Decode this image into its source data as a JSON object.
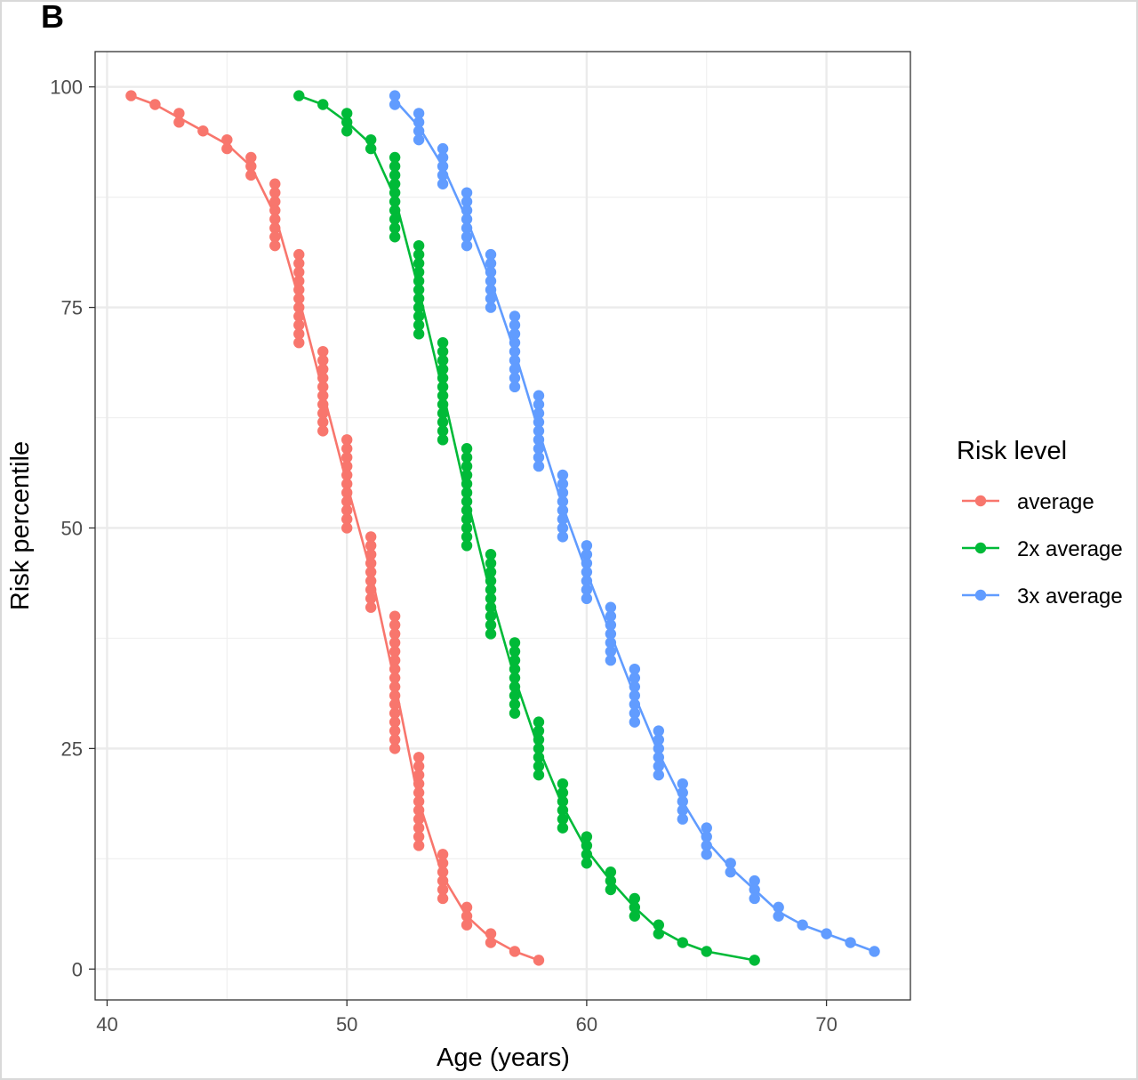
{
  "panel_label": "B",
  "chart_data": {
    "type": "scatter",
    "xlabel": "Age (years)",
    "ylabel": "Risk percentile",
    "xlim": [
      39.5,
      73.5
    ],
    "ylim": [
      -3.5,
      104
    ],
    "x_ticks": [
      40,
      50,
      60,
      70
    ],
    "y_ticks": [
      0,
      25,
      50,
      75,
      100
    ],
    "grid": true,
    "legend_title": "Risk level",
    "legend_position": "right",
    "series": [
      {
        "name": "average",
        "color": "#F8766D",
        "points": [
          [
            41,
            99
          ],
          [
            42,
            98
          ],
          [
            43,
            97
          ],
          [
            43,
            96
          ],
          [
            44,
            95
          ],
          [
            45,
            94
          ],
          [
            45,
            93
          ],
          [
            46,
            92
          ],
          [
            46,
            91
          ],
          [
            46,
            90
          ],
          [
            47,
            89
          ],
          [
            47,
            88
          ],
          [
            47,
            87
          ],
          [
            47,
            86
          ],
          [
            47,
            85
          ],
          [
            47,
            84
          ],
          [
            47,
            83
          ],
          [
            47,
            82
          ],
          [
            48,
            81
          ],
          [
            48,
            80
          ],
          [
            48,
            79
          ],
          [
            48,
            78
          ],
          [
            48,
            77
          ],
          [
            48,
            76
          ],
          [
            48,
            75
          ],
          [
            48,
            74
          ],
          [
            48,
            73
          ],
          [
            48,
            72
          ],
          [
            48,
            71
          ],
          [
            49,
            70
          ],
          [
            49,
            69
          ],
          [
            49,
            68
          ],
          [
            49,
            67
          ],
          [
            49,
            66
          ],
          [
            49,
            65
          ],
          [
            49,
            64
          ],
          [
            49,
            63
          ],
          [
            49,
            62
          ],
          [
            49,
            61
          ],
          [
            50,
            60
          ],
          [
            50,
            59
          ],
          [
            50,
            58
          ],
          [
            50,
            57
          ],
          [
            50,
            56
          ],
          [
            50,
            55
          ],
          [
            50,
            54
          ],
          [
            50,
            53
          ],
          [
            50,
            52
          ],
          [
            50,
            51
          ],
          [
            50,
            50
          ],
          [
            51,
            49
          ],
          [
            51,
            48
          ],
          [
            51,
            47
          ],
          [
            51,
            46
          ],
          [
            51,
            45
          ],
          [
            51,
            44
          ],
          [
            51,
            43
          ],
          [
            51,
            42
          ],
          [
            51,
            41
          ],
          [
            52,
            40
          ],
          [
            52,
            39
          ],
          [
            52,
            38
          ],
          [
            52,
            37
          ],
          [
            52,
            36
          ],
          [
            52,
            35
          ],
          [
            52,
            34
          ],
          [
            52,
            33
          ],
          [
            52,
            32
          ],
          [
            52,
            31
          ],
          [
            52,
            30
          ],
          [
            52,
            29
          ],
          [
            52,
            28
          ],
          [
            52,
            27
          ],
          [
            52,
            26
          ],
          [
            52,
            25
          ],
          [
            53,
            24
          ],
          [
            53,
            23
          ],
          [
            53,
            22
          ],
          [
            53,
            21
          ],
          [
            53,
            20
          ],
          [
            53,
            19
          ],
          [
            53,
            18
          ],
          [
            53,
            17
          ],
          [
            53,
            16
          ],
          [
            53,
            15
          ],
          [
            53,
            14
          ],
          [
            54,
            13
          ],
          [
            54,
            12
          ],
          [
            54,
            11
          ],
          [
            54,
            10
          ],
          [
            54,
            9
          ],
          [
            54,
            8
          ],
          [
            55,
            7
          ],
          [
            55,
            6
          ],
          [
            55,
            5
          ],
          [
            56,
            4
          ],
          [
            56,
            3
          ],
          [
            57,
            2
          ],
          [
            58,
            1
          ]
        ]
      },
      {
        "name": "2x average",
        "color": "#00BA38",
        "points": [
          [
            48,
            99
          ],
          [
            49,
            98
          ],
          [
            50,
            97
          ],
          [
            50,
            96
          ],
          [
            50,
            95
          ],
          [
            51,
            94
          ],
          [
            51,
            93
          ],
          [
            52,
            92
          ],
          [
            52,
            91
          ],
          [
            52,
            90
          ],
          [
            52,
            89
          ],
          [
            52,
            88
          ],
          [
            52,
            87
          ],
          [
            52,
            86
          ],
          [
            52,
            85
          ],
          [
            52,
            84
          ],
          [
            52,
            83
          ],
          [
            53,
            82
          ],
          [
            53,
            81
          ],
          [
            53,
            80
          ],
          [
            53,
            79
          ],
          [
            53,
            78
          ],
          [
            53,
            77
          ],
          [
            53,
            76
          ],
          [
            53,
            75
          ],
          [
            53,
            74
          ],
          [
            53,
            73
          ],
          [
            53,
            72
          ],
          [
            54,
            71
          ],
          [
            54,
            70
          ],
          [
            54,
            69
          ],
          [
            54,
            68
          ],
          [
            54,
            67
          ],
          [
            54,
            66
          ],
          [
            54,
            65
          ],
          [
            54,
            64
          ],
          [
            54,
            63
          ],
          [
            54,
            62
          ],
          [
            54,
            61
          ],
          [
            54,
            60
          ],
          [
            55,
            59
          ],
          [
            55,
            58
          ],
          [
            55,
            57
          ],
          [
            55,
            56
          ],
          [
            55,
            55
          ],
          [
            55,
            54
          ],
          [
            55,
            53
          ],
          [
            55,
            52
          ],
          [
            55,
            51
          ],
          [
            55,
            50
          ],
          [
            55,
            49
          ],
          [
            55,
            48
          ],
          [
            56,
            47
          ],
          [
            56,
            46
          ],
          [
            56,
            45
          ],
          [
            56,
            44
          ],
          [
            56,
            43
          ],
          [
            56,
            42
          ],
          [
            56,
            41
          ],
          [
            56,
            40
          ],
          [
            56,
            39
          ],
          [
            56,
            38
          ],
          [
            57,
            37
          ],
          [
            57,
            36
          ],
          [
            57,
            35
          ],
          [
            57,
            34
          ],
          [
            57,
            33
          ],
          [
            57,
            32
          ],
          [
            57,
            31
          ],
          [
            57,
            30
          ],
          [
            57,
            29
          ],
          [
            58,
            28
          ],
          [
            58,
            27
          ],
          [
            58,
            26
          ],
          [
            58,
            25
          ],
          [
            58,
            24
          ],
          [
            58,
            23
          ],
          [
            58,
            22
          ],
          [
            59,
            21
          ],
          [
            59,
            20
          ],
          [
            59,
            19
          ],
          [
            59,
            18
          ],
          [
            59,
            17
          ],
          [
            59,
            16
          ],
          [
            60,
            15
          ],
          [
            60,
            14
          ],
          [
            60,
            13
          ],
          [
            60,
            12
          ],
          [
            61,
            11
          ],
          [
            61,
            10
          ],
          [
            61,
            9
          ],
          [
            62,
            8
          ],
          [
            62,
            7
          ],
          [
            62,
            6
          ],
          [
            63,
            5
          ],
          [
            63,
            4
          ],
          [
            64,
            3
          ],
          [
            65,
            2
          ],
          [
            67,
            1
          ]
        ]
      },
      {
        "name": "3x average",
        "color": "#619CFF",
        "points": [
          [
            52,
            99
          ],
          [
            52,
            98
          ],
          [
            53,
            97
          ],
          [
            53,
            96
          ],
          [
            53,
            95
          ],
          [
            53,
            94
          ],
          [
            54,
            93
          ],
          [
            54,
            92
          ],
          [
            54,
            91
          ],
          [
            54,
            90
          ],
          [
            54,
            89
          ],
          [
            55,
            88
          ],
          [
            55,
            87
          ],
          [
            55,
            86
          ],
          [
            55,
            85
          ],
          [
            55,
            84
          ],
          [
            55,
            83
          ],
          [
            55,
            82
          ],
          [
            56,
            81
          ],
          [
            56,
            80
          ],
          [
            56,
            79
          ],
          [
            56,
            78
          ],
          [
            56,
            77
          ],
          [
            56,
            76
          ],
          [
            56,
            75
          ],
          [
            57,
            74
          ],
          [
            57,
            73
          ],
          [
            57,
            72
          ],
          [
            57,
            71
          ],
          [
            57,
            70
          ],
          [
            57,
            69
          ],
          [
            57,
            68
          ],
          [
            57,
            67
          ],
          [
            57,
            66
          ],
          [
            58,
            65
          ],
          [
            58,
            64
          ],
          [
            58,
            63
          ],
          [
            58,
            62
          ],
          [
            58,
            61
          ],
          [
            58,
            60
          ],
          [
            58,
            59
          ],
          [
            58,
            58
          ],
          [
            58,
            57
          ],
          [
            59,
            56
          ],
          [
            59,
            55
          ],
          [
            59,
            54
          ],
          [
            59,
            53
          ],
          [
            59,
            52
          ],
          [
            59,
            51
          ],
          [
            59,
            50
          ],
          [
            59,
            49
          ],
          [
            60,
            48
          ],
          [
            60,
            47
          ],
          [
            60,
            46
          ],
          [
            60,
            45
          ],
          [
            60,
            44
          ],
          [
            60,
            43
          ],
          [
            60,
            42
          ],
          [
            61,
            41
          ],
          [
            61,
            40
          ],
          [
            61,
            39
          ],
          [
            61,
            38
          ],
          [
            61,
            37
          ],
          [
            61,
            36
          ],
          [
            61,
            35
          ],
          [
            62,
            34
          ],
          [
            62,
            33
          ],
          [
            62,
            32
          ],
          [
            62,
            31
          ],
          [
            62,
            30
          ],
          [
            62,
            29
          ],
          [
            62,
            28
          ],
          [
            63,
            27
          ],
          [
            63,
            26
          ],
          [
            63,
            25
          ],
          [
            63,
            24
          ],
          [
            63,
            23
          ],
          [
            63,
            22
          ],
          [
            64,
            21
          ],
          [
            64,
            20
          ],
          [
            64,
            19
          ],
          [
            64,
            18
          ],
          [
            64,
            17
          ],
          [
            65,
            16
          ],
          [
            65,
            15
          ],
          [
            65,
            14
          ],
          [
            65,
            13
          ],
          [
            66,
            12
          ],
          [
            66,
            11
          ],
          [
            67,
            10
          ],
          [
            67,
            9
          ],
          [
            67,
            8
          ],
          [
            68,
            7
          ],
          [
            68,
            6
          ],
          [
            69,
            5
          ],
          [
            70,
            4
          ],
          [
            71,
            3
          ],
          [
            72,
            2
          ]
        ]
      }
    ]
  }
}
